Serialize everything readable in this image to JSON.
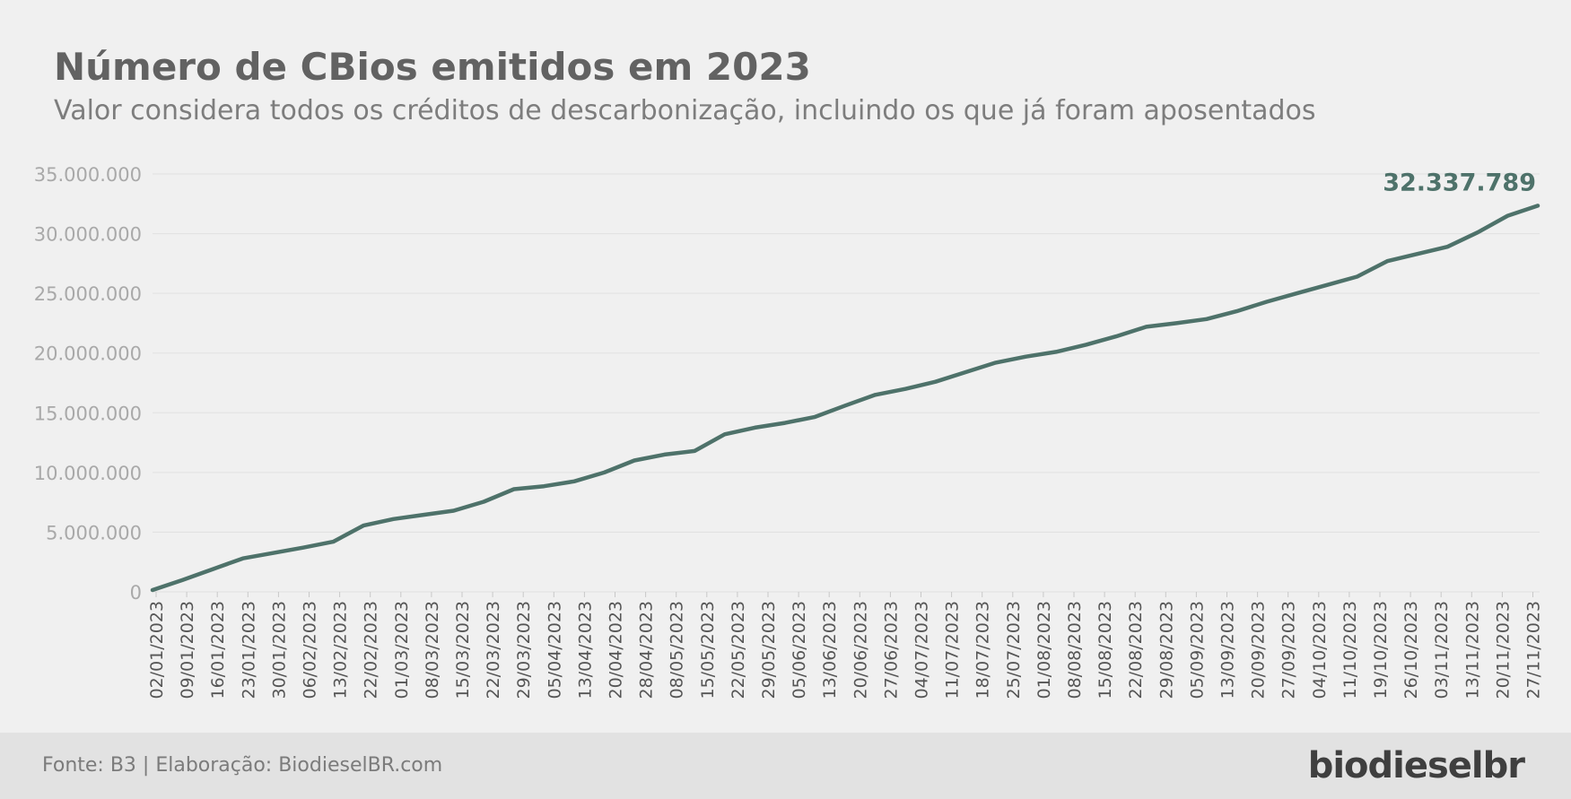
{
  "title": "Número de CBios emitidos em 2023",
  "subtitle": "Valor considera todos os créditos de descarbonização, incluindo os que já foram aposentados",
  "footer": {
    "source": "Fonte: B3 | Elaboração: BiodieselBR.com",
    "logo": "biodieselbr"
  },
  "colors": {
    "line": "#4e726a",
    "grid": "#e1e1e1",
    "tick_text": "#a9a9a9",
    "x_text": "#555555"
  },
  "chart_data": {
    "type": "line",
    "ylim": [
      0,
      35000000
    ],
    "y_ticks": [
      {
        "value": 0,
        "label": "0"
      },
      {
        "value": 5000000,
        "label": "5.000.000"
      },
      {
        "value": 10000000,
        "label": "10.000.000"
      },
      {
        "value": 15000000,
        "label": "15.000.000"
      },
      {
        "value": 20000000,
        "label": "20.000.000"
      },
      {
        "value": 25000000,
        "label": "25.000.000"
      },
      {
        "value": 30000000,
        "label": "30.000.000"
      },
      {
        "value": 35000000,
        "label": "35.000.000"
      }
    ],
    "x_tick_labels": [
      "02/01/2023",
      "09/01/2023",
      "16/01/2023",
      "23/01/2023",
      "30/01/2023",
      "06/02/2023",
      "13/02/2023",
      "22/02/2023",
      "01/03/2023",
      "08/03/2023",
      "15/03/2023",
      "22/03/2023",
      "29/03/2023",
      "05/04/2023",
      "13/04/2023",
      "20/04/2023",
      "28/04/2023",
      "08/05/2023",
      "15/05/2023",
      "22/05/2023",
      "29/05/2023",
      "05/06/2023",
      "13/06/2023",
      "20/06/2023",
      "27/06/2023",
      "04/07/2023",
      "11/07/2023",
      "18/07/2023",
      "25/07/2023",
      "01/08/2023",
      "08/08/2023",
      "15/08/2023",
      "22/08/2023",
      "29/08/2023",
      "05/09/2023",
      "13/09/2023",
      "20/09/2023",
      "27/09/2023",
      "04/10/2023",
      "11/10/2023",
      "19/10/2023",
      "26/10/2023",
      "03/11/2023",
      "13/11/2023",
      "20/11/2023",
      "27/11/2023"
    ],
    "series": [
      {
        "values": [
          150000,
          1000000,
          1900000,
          2800000,
          3250000,
          3700000,
          4200000,
          5550000,
          6100000,
          6450000,
          6800000,
          7550000,
          8600000,
          8850000,
          9250000,
          10000000,
          11000000,
          11500000,
          11800000,
          13200000,
          13750000,
          14150000,
          14650000,
          15600000,
          16500000,
          17000000,
          17600000,
          18400000,
          19200000,
          19700000,
          20100000,
          20700000,
          21400000,
          22200000,
          22500000,
          22850000,
          23500000,
          24300000,
          25000000,
          25700000,
          26400000,
          27700000,
          28300000,
          28900000,
          30100000,
          31500000,
          32337789
        ],
        "final_label": "32.337.789"
      }
    ]
  }
}
